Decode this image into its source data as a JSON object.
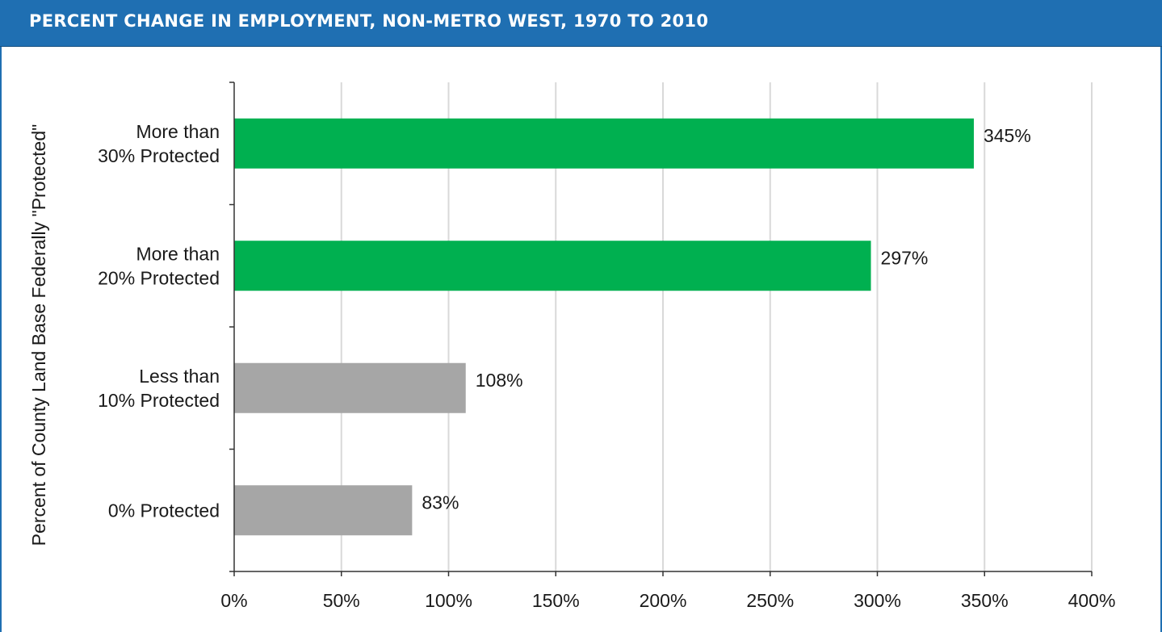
{
  "header": {
    "title": "PERCENT CHANGE IN EMPLOYMENT, NON-METRO WEST, 1970 TO 2010"
  },
  "colors": {
    "header_bg": "#1f6fb2",
    "protected_bar": "#00b050",
    "unprotected_bar": "#a6a6a6",
    "gridline": "#d9d9d9"
  },
  "chart_data": {
    "type": "bar",
    "orientation": "horizontal",
    "title": "PERCENT CHANGE IN EMPLOYMENT, NON-METRO WEST, 1970 TO 2010",
    "ylabel": "Percent of County Land Base Federally \"Protected\"",
    "xlabel": "",
    "categories": [
      [
        "More than",
        "30% Protected"
      ],
      [
        "More than",
        "20% Protected"
      ],
      [
        "Less than",
        "10% Protected"
      ],
      [
        "0% Protected"
      ]
    ],
    "values": [
      345,
      297,
      108,
      83
    ],
    "value_labels": [
      "345%",
      "297%",
      "108%",
      "83%"
    ],
    "bar_colors": [
      "#00b050",
      "#00b050",
      "#a6a6a6",
      "#a6a6a6"
    ],
    "xlim": [
      0,
      400
    ],
    "xticks": [
      0,
      50,
      100,
      150,
      200,
      250,
      300,
      350,
      400
    ],
    "xtick_labels": [
      "0%",
      "50%",
      "100%",
      "150%",
      "200%",
      "250%",
      "300%",
      "350%",
      "400%"
    ],
    "grid": "vertical",
    "legend": "none"
  }
}
